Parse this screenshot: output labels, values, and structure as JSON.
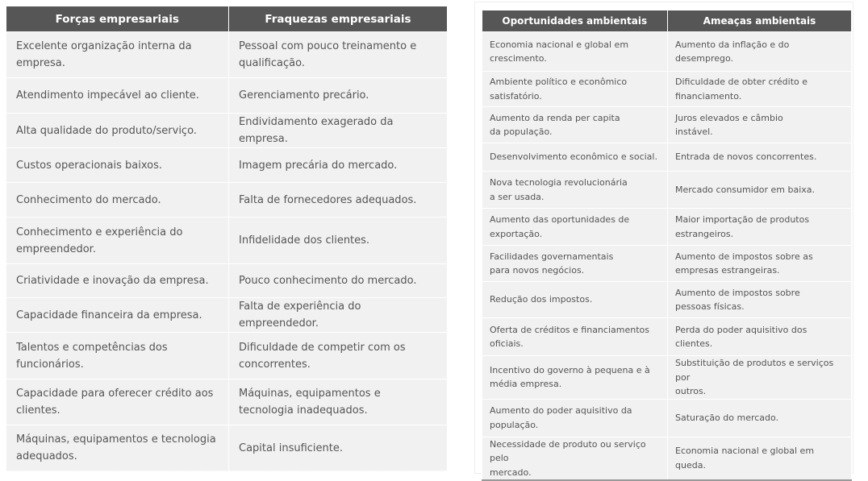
{
  "left_table": {
    "headers": [
      "Forças empresariais",
      "Fraquezas empresariais"
    ],
    "rows": [
      [
        "Excelente organização interna da empresa.",
        "Pessoal com pouco treinamento e qualificação."
      ],
      [
        "Atendimento impecável ao cliente.",
        "Gerenciamento precário."
      ],
      [
        "Alta qualidade do produto/serviço.",
        "Endividamento exagerado da empresa."
      ],
      [
        "Custos operacionais baixos.",
        "Imagem precária do mercado."
      ],
      [
        "Conhecimento do mercado.",
        "Falta de fornecedores adequados."
      ],
      [
        "Conhecimento e experiência do empreendedor.",
        "Infidelidade dos clientes."
      ],
      [
        "Criatividade e inovação da empresa.",
        "Pouco conhecimento do mercado."
      ],
      [
        "Capacidade financeira da empresa.",
        "Falta de experiência do empreendedor."
      ],
      [
        "Talentos e competências dos funcionários.",
        "Dificuldade de competir com os concorrentes."
      ],
      [
        "Capacidade para oferecer crédito aos clientes.",
        "Máquinas, equipamentos e tecnologia inadequados."
      ],
      [
        "Máquinas, equipamentos e tecnologia adequados.",
        "Capital insuficiente."
      ]
    ]
  },
  "right_table": {
    "headers": [
      "Oportunidades ambientais",
      "Ameaças ambientais"
    ],
    "rows": [
      [
        "Economia nacional e global em\ncrescimento.",
        "Aumento da inflação e do\ndesemprego."
      ],
      [
        "Ambiente político e econômico\nsatisfatório.",
        "Dificuldade de obter crédito e\nfinanciamento."
      ],
      [
        "Aumento da renda per capita\nda população.",
        "Juros elevados e câmbio\ninstável."
      ],
      [
        "Desenvolvimento econômico e social.",
        "Entrada de novos concorrentes."
      ],
      [
        "Nova tecnologia revolucionária\na ser usada.",
        "Mercado consumidor em baixa."
      ],
      [
        "Aumento das oportunidades de\nexportação.",
        "Maior importação de produtos\nestrangeiros."
      ],
      [
        "Facilidades governamentais\npara novos negócios.",
        "Aumento de impostos sobre as\nempresas estrangeiras."
      ],
      [
        "Redução dos impostos.",
        "Aumento de impostos sobre\npessoas físicas."
      ],
      [
        "Oferta de créditos e financiamentos\noficiais.",
        "Perda do poder aquisitivo dos\nclientes."
      ],
      [
        "Incentivo do governo à pequena e à\nmédia empresa.",
        "Substituição de produtos e serviços por\noutros."
      ],
      [
        "Aumento do poder aquisitivo da\npopulação.",
        "Saturação do mercado."
      ],
      [
        "Necessidade de produto ou serviço pelo\nmercado.",
        "Economia nacional e global em queda."
      ]
    ]
  }
}
